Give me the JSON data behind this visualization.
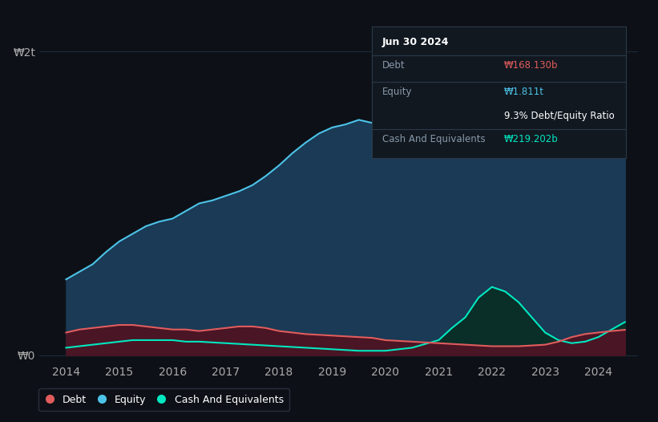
{
  "background_color": "#0d1117",
  "plot_bg_color": "#0d1117",
  "grid_color": "#1e2a3a",
  "tooltip": {
    "date": "Jun 30 2024",
    "debt_label": "Debt",
    "debt_value": "₩168.130b",
    "equity_label": "Equity",
    "equity_value": "₩1.811t",
    "ratio_text": "9.3% Debt/Equity Ratio",
    "cash_label": "Cash And Equivalents",
    "cash_value": "₩219.202b"
  },
  "ylabel_top": "₩2t",
  "ylabel_bottom": "₩0",
  "xlim": [
    2013.5,
    2024.75
  ],
  "ylim": [
    -0.05,
    2.2
  ],
  "debt_color": "#e05c5c",
  "debt_fill_color": "#4a1525",
  "equity_color": "#4dc3e8",
  "equity_fill_color": "#1a3a55",
  "cash_color": "#00e8c0",
  "cash_fill_color": "#0a2e28",
  "legend_debt_color": "#e05c5c",
  "legend_equity_color": "#4dc3e8",
  "legend_cash_color": "#00e8c0",
  "years": [
    2014.0,
    2014.25,
    2014.5,
    2014.75,
    2015.0,
    2015.25,
    2015.5,
    2015.75,
    2016.0,
    2016.25,
    2016.5,
    2016.75,
    2017.0,
    2017.25,
    2017.5,
    2017.75,
    2018.0,
    2018.25,
    2018.5,
    2018.75,
    2019.0,
    2019.25,
    2019.5,
    2019.75,
    2020.0,
    2020.25,
    2020.5,
    2020.75,
    2021.0,
    2021.25,
    2021.5,
    2021.75,
    2022.0,
    2022.25,
    2022.5,
    2022.75,
    2023.0,
    2023.25,
    2023.5,
    2023.75,
    2024.0,
    2024.25,
    2024.5
  ],
  "equity_values": [
    0.5,
    0.55,
    0.6,
    0.68,
    0.75,
    0.8,
    0.85,
    0.88,
    0.9,
    0.95,
    1.0,
    1.02,
    1.05,
    1.08,
    1.12,
    1.18,
    1.25,
    1.33,
    1.4,
    1.46,
    1.5,
    1.52,
    1.55,
    1.53,
    1.52,
    1.55,
    1.58,
    1.59,
    1.6,
    1.68,
    1.75,
    1.82,
    1.85,
    1.84,
    1.8,
    1.76,
    1.72,
    1.7,
    1.68,
    1.7,
    1.75,
    1.79,
    1.811
  ],
  "debt_values": [
    0.15,
    0.17,
    0.18,
    0.19,
    0.2,
    0.2,
    0.19,
    0.18,
    0.17,
    0.17,
    0.16,
    0.17,
    0.18,
    0.19,
    0.19,
    0.18,
    0.16,
    0.15,
    0.14,
    0.135,
    0.13,
    0.125,
    0.12,
    0.115,
    0.1,
    0.095,
    0.09,
    0.085,
    0.08,
    0.075,
    0.07,
    0.065,
    0.06,
    0.06,
    0.06,
    0.065,
    0.07,
    0.09,
    0.12,
    0.14,
    0.15,
    0.16,
    0.168
  ],
  "cash_values": [
    0.05,
    0.06,
    0.07,
    0.08,
    0.09,
    0.1,
    0.1,
    0.1,
    0.1,
    0.09,
    0.09,
    0.085,
    0.08,
    0.075,
    0.07,
    0.065,
    0.06,
    0.055,
    0.05,
    0.045,
    0.04,
    0.035,
    0.03,
    0.03,
    0.03,
    0.04,
    0.05,
    0.075,
    0.1,
    0.18,
    0.25,
    0.38,
    0.45,
    0.42,
    0.35,
    0.25,
    0.15,
    0.1,
    0.08,
    0.09,
    0.12,
    0.17,
    0.219
  ],
  "xtick_labels": [
    "2014",
    "2015",
    "2016",
    "2017",
    "2018",
    "2019",
    "2020",
    "2021",
    "2022",
    "2023",
    "2024"
  ],
  "xtick_positions": [
    2014,
    2015,
    2016,
    2017,
    2018,
    2019,
    2020,
    2021,
    2022,
    2023,
    2024
  ]
}
